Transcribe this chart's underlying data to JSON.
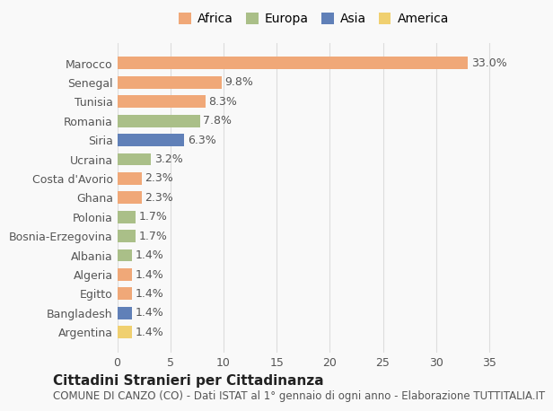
{
  "countries": [
    "Marocco",
    "Senegal",
    "Tunisia",
    "Romania",
    "Siria",
    "Ucraina",
    "Costa d'Avorio",
    "Ghana",
    "Polonia",
    "Bosnia-Erzegovina",
    "Albania",
    "Algeria",
    "Egitto",
    "Bangladesh",
    "Argentina"
  ],
  "values": [
    33.0,
    9.8,
    8.3,
    7.8,
    6.3,
    3.2,
    2.3,
    2.3,
    1.7,
    1.7,
    1.4,
    1.4,
    1.4,
    1.4,
    1.4
  ],
  "continents": [
    "Africa",
    "Africa",
    "Africa",
    "Europa",
    "Asia",
    "Europa",
    "Africa",
    "Africa",
    "Europa",
    "Europa",
    "Europa",
    "Africa",
    "Africa",
    "Asia",
    "America"
  ],
  "continent_colors": {
    "Africa": "#F0A878",
    "Europa": "#AABF88",
    "Asia": "#6080B8",
    "America": "#F0D070"
  },
  "legend_order": [
    "Africa",
    "Europa",
    "Asia",
    "America"
  ],
  "title1": "Cittadini Stranieri per Cittadinanza",
  "title2": "COMUNE DI CANZO (CO) - Dati ISTAT al 1° gennaio di ogni anno - Elaborazione TUTTITALIA.IT",
  "xlim": [
    0,
    37
  ],
  "xticks": [
    0,
    5,
    10,
    15,
    20,
    25,
    30,
    35
  ],
  "bg_color": "#f9f9f9",
  "grid_color": "#dddddd",
  "bar_height": 0.65,
  "label_fontsize": 9,
  "tick_fontsize": 9,
  "title1_fontsize": 11,
  "title2_fontsize": 8.5,
  "legend_fontsize": 10
}
